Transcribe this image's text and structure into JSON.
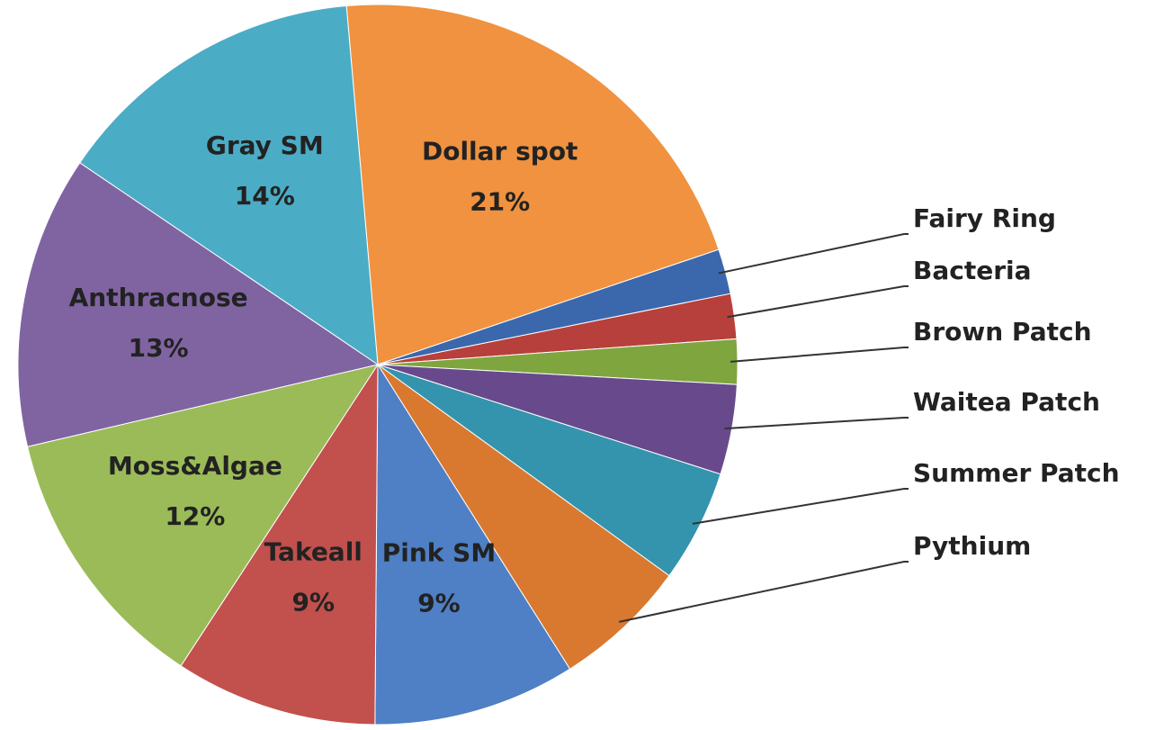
{
  "chart_data": {
    "type": "pie",
    "categories": [
      "Dollar spot",
      "Fairy Ring",
      "Bacteria",
      "Brown Patch",
      "Waitea Patch",
      "Summer Patch",
      "Pythium",
      "Pink SM",
      "Takeall",
      "Moss&Algae",
      "Anthracnose",
      "Gray SM"
    ],
    "values": [
      21,
      2,
      2,
      2,
      4,
      5,
      6,
      9,
      9,
      12,
      13,
      14
    ],
    "value_labels": [
      "21%",
      null,
      null,
      null,
      null,
      null,
      null,
      "9%",
      "9%",
      "12%",
      "13%",
      "14%"
    ],
    "colors": [
      "#f0923f",
      "#3b68ad",
      "#b8403c",
      "#7fa53f",
      "#684a8c",
      "#3494ae",
      "#d9782f",
      "#4f7fc4",
      "#c2504d",
      "#9bbb59",
      "#8064a2",
      "#4bacc6"
    ]
  }
}
